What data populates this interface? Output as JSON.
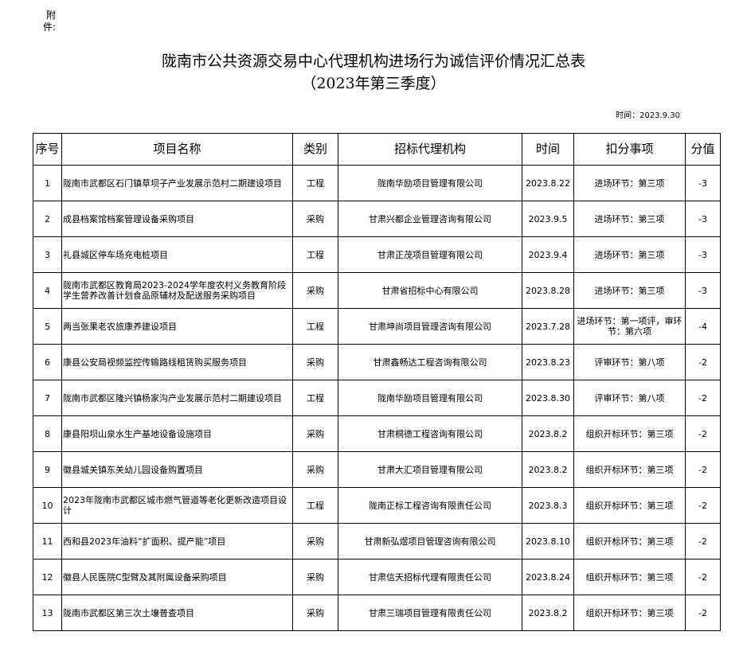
{
  "attachment_label": "附件:",
  "title": "陇南市公共资源交易中心代理机构进场行为诚信评价情况汇总表",
  "subtitle": "（2023年第三季度）",
  "date_line": "时间：2023.9.30",
  "table": {
    "headers": [
      "序号",
      "项目名称",
      "类别",
      "招标代理机构",
      "时间",
      "扣分事项",
      "分值"
    ],
    "rows": [
      [
        "1",
        "陇南市武都区石门镇草坝子产业发展示范村二期建设项目",
        "工程",
        "陇南华励项目管理有限公司",
        "2023.8.22",
        "进场环节：第三项",
        "-3"
      ],
      [
        "2",
        "成县档案馆档案管理设备采购项目",
        "采购",
        "甘肃兴都企业管理咨询有限公司",
        "2023.9.5",
        "进场环节：第三项",
        "-3"
      ],
      [
        "3",
        "礼县城区停车场充电桩项目",
        "工程",
        "甘肃正茂项目管理有限公司",
        "2023.9.4",
        "进场环节：第三项",
        "-3"
      ],
      [
        "4",
        "陇南市武都区教育局2023-2024学年度农村义务教育阶段学生营养改善计划食品原辅材及配送服务采购项目",
        "采购",
        "甘肃省招标中心有限公司",
        "2023.8.28",
        "进场环节：第三项",
        "-3"
      ],
      [
        "5",
        "两当张果老农旅康养建设项目",
        "工程",
        "甘肃坤尚项目管理咨询有限公司",
        "2023.7.28",
        "进场环节：第一项评，审环节：第六项",
        "-4"
      ],
      [
        "6",
        "康县公安局视频监控传输路线租赁购买服务项目",
        "采购",
        "甘肃鑫畅达工程咨询有限公司",
        "2023.8.23",
        "评审环节：第八项",
        "-2"
      ],
      [
        "7",
        "陇南市武都区隆兴镇杨家沟产业发展示范村二期建设项目",
        "工程",
        "陇南华励项目管理有限公司",
        "2023.8.30",
        "评审环节：第八项",
        "-2"
      ],
      [
        "8",
        "康县阳坝山泉水生产基地设备设施项目",
        "采购",
        "甘肃桐德工程咨询有限公司",
        "2023.8.2",
        "组织开标环节：第三项",
        "-2"
      ],
      [
        "9",
        "徽县城关镇东关幼儿园设备购置项目",
        "采购",
        "甘肃大汇项目管理有限公司",
        "2023.8.2",
        "组织开标环节：第三项",
        "-2"
      ],
      [
        "10",
        "2023年陇南市武都区城市燃气管道等老化更新改造项目设计",
        "工程",
        "陇南正标工程咨询有限责任公司",
        "2023.8.3",
        "组织开标环节：第三项",
        "-2"
      ],
      [
        "11",
        "西和县2023年油料“扩面积、提产能”项目",
        "采购",
        "甘肃新弘煜项目管理咨询有限公司",
        "2023.8.10",
        "组织开标环节：第三项",
        "-2"
      ],
      [
        "12",
        "徽县人民医院C型臂及其附属设备采购项目",
        "采购",
        "甘肃信天招标代理有限责任公司",
        "2023.8.24",
        "组织开标环节：第三项",
        "-2"
      ],
      [
        "13",
        "陇南市武都区第三次土壤普查项目",
        "采购",
        "甘肃三瑞项目管理有限责任公司",
        "2023.8.2",
        "组织开标环节：第三项",
        "-2"
      ]
    ]
  }
}
